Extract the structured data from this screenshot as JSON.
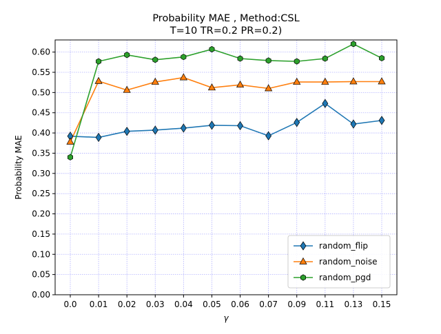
{
  "chart_data": {
    "type": "line",
    "title_lines": [
      "Probability MAE , Method:CSL",
      "T=10 TR=0.2 PR=0.2)"
    ],
    "xlabel": "γ",
    "ylabel": "Probability MAE",
    "categories": [
      "0.0",
      "0.01",
      "0.02",
      "0.03",
      "0.04",
      "0.05",
      "0.06",
      "0.07",
      "0.09",
      "0.11",
      "0.13",
      "0.15"
    ],
    "ylim": [
      0.0,
      0.63
    ],
    "yticks": [
      "0.00",
      "0.05",
      "0.10",
      "0.15",
      "0.20",
      "0.25",
      "0.30",
      "0.35",
      "0.40",
      "0.45",
      "0.50",
      "0.55",
      "0.60"
    ],
    "grid": true,
    "legend_position": "lower-right",
    "series": [
      {
        "name": "random_flip",
        "color": "#1f77b4",
        "marker": "diamond",
        "values": [
          0.392,
          0.389,
          0.404,
          0.407,
          0.412,
          0.419,
          0.418,
          0.393,
          0.426,
          0.473,
          0.422,
          0.431
        ]
      },
      {
        "name": "random_noise",
        "color": "#ff7f0e",
        "marker": "triangle",
        "values": [
          0.378,
          0.528,
          0.506,
          0.526,
          0.537,
          0.512,
          0.519,
          0.51,
          0.526,
          0.526,
          0.527,
          0.527
        ]
      },
      {
        "name": "random_pgd",
        "color": "#2ca02c",
        "marker": "hexagon",
        "values": [
          0.34,
          0.577,
          0.593,
          0.581,
          0.588,
          0.607,
          0.584,
          0.579,
          0.577,
          0.584,
          0.62,
          0.585
        ]
      }
    ]
  }
}
